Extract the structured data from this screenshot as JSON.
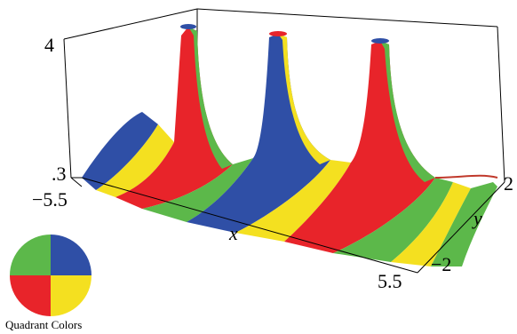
{
  "plot": {
    "z_max_label": "4",
    "z_min_label": ".3",
    "x_min_label": "−5.5",
    "x_max_label": "5.5",
    "x_axis_label": "x",
    "y_axis_label": "y",
    "y_max_label": "2",
    "y_min_label": "−2"
  },
  "legend": {
    "caption": "Quadrant Colors",
    "quadrants": {
      "top_left": "#5cb84a",
      "top_right": "#2f4fa6",
      "bottom_left": "#e8242a",
      "bottom_right": "#f4e020"
    }
  },
  "colors": {
    "blue": "#2f4fa6",
    "red": "#e8242a",
    "yellow": "#f4e020",
    "green": "#5cb84a"
  }
}
